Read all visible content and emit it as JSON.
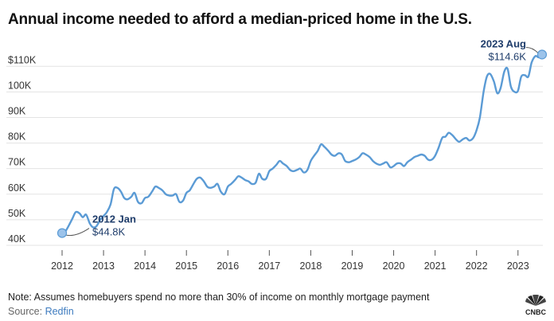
{
  "chart_data": {
    "type": "line",
    "title": "Annual income needed to afford a median-priced home in the U.S.",
    "xlabel": "",
    "ylabel": "",
    "xlim": [
      2012,
      2023.6
    ],
    "ylim": [
      40,
      116
    ],
    "x_ticks": [
      2012,
      2013,
      2014,
      2015,
      2016,
      2017,
      2018,
      2019,
      2020,
      2021,
      2022,
      2023
    ],
    "x_tick_labels": [
      "2012",
      "2013",
      "2014",
      "2015",
      "2016",
      "2017",
      "2018",
      "2019",
      "2020",
      "2021",
      "2022",
      "2023"
    ],
    "y_ticks": [
      40,
      50,
      60,
      70,
      80,
      90,
      100,
      110
    ],
    "y_tick_labels": [
      "40K",
      "50K",
      "60K",
      "70K",
      "80K",
      "90K",
      "100K",
      "$110K"
    ],
    "grid": "horizontal",
    "line_color": "#5b9bd5",
    "series": [
      {
        "name": "Annual income needed ($K)",
        "x": [
          2012.0,
          2012.08,
          2012.17,
          2012.25,
          2012.33,
          2012.42,
          2012.5,
          2012.58,
          2012.67,
          2012.75,
          2012.83,
          2012.92,
          2013.0,
          2013.08,
          2013.17,
          2013.25,
          2013.33,
          2013.42,
          2013.5,
          2013.58,
          2013.67,
          2013.75,
          2013.83,
          2013.92,
          2014.0,
          2014.08,
          2014.17,
          2014.25,
          2014.33,
          2014.42,
          2014.5,
          2014.58,
          2014.67,
          2014.75,
          2014.83,
          2014.92,
          2015.0,
          2015.08,
          2015.17,
          2015.25,
          2015.33,
          2015.42,
          2015.5,
          2015.58,
          2015.67,
          2015.75,
          2015.83,
          2015.92,
          2016.0,
          2016.08,
          2016.17,
          2016.25,
          2016.33,
          2016.42,
          2016.5,
          2016.58,
          2016.67,
          2016.75,
          2016.83,
          2016.92,
          2017.0,
          2017.08,
          2017.17,
          2017.25,
          2017.33,
          2017.42,
          2017.5,
          2017.58,
          2017.67,
          2017.75,
          2017.83,
          2017.92,
          2018.0,
          2018.08,
          2018.17,
          2018.25,
          2018.33,
          2018.42,
          2018.5,
          2018.58,
          2018.67,
          2018.75,
          2018.83,
          2018.92,
          2019.0,
          2019.08,
          2019.17,
          2019.25,
          2019.33,
          2019.42,
          2019.5,
          2019.58,
          2019.67,
          2019.75,
          2019.83,
          2019.92,
          2020.0,
          2020.08,
          2020.17,
          2020.25,
          2020.33,
          2020.42,
          2020.5,
          2020.58,
          2020.67,
          2020.75,
          2020.83,
          2020.92,
          2021.0,
          2021.08,
          2021.17,
          2021.25,
          2021.33,
          2021.42,
          2021.5,
          2021.58,
          2021.67,
          2021.75,
          2021.83,
          2021.92,
          2022.0,
          2022.08,
          2022.17,
          2022.25,
          2022.33,
          2022.42,
          2022.5,
          2022.58,
          2022.67,
          2022.75,
          2022.83,
          2022.92,
          2023.0,
          2023.08,
          2023.17,
          2023.25,
          2023.33,
          2023.42,
          2023.5,
          2023.58
        ],
        "values": [
          44.8,
          45.5,
          48.0,
          50.5,
          53.0,
          52.5,
          51.0,
          52.0,
          48.5,
          47.0,
          47.5,
          50.0,
          51.5,
          53.0,
          56.0,
          62.0,
          62.5,
          61.0,
          58.5,
          58.0,
          59.0,
          60.5,
          57.0,
          56.5,
          58.5,
          59.0,
          61.0,
          63.0,
          62.5,
          61.5,
          60.0,
          59.5,
          59.5,
          60.0,
          57.0,
          57.5,
          60.5,
          61.5,
          64.0,
          66.0,
          66.5,
          65.0,
          63.0,
          62.5,
          63.0,
          64.0,
          61.0,
          60.0,
          63.0,
          64.0,
          65.5,
          67.0,
          66.5,
          65.5,
          65.0,
          64.0,
          64.5,
          68.0,
          66.0,
          66.0,
          69.0,
          70.0,
          71.5,
          73.0,
          72.0,
          71.0,
          69.5,
          69.0,
          69.5,
          70.0,
          68.5,
          69.5,
          73.0,
          75.0,
          77.0,
          79.5,
          78.5,
          77.0,
          75.5,
          75.0,
          76.0,
          75.5,
          73.0,
          72.5,
          73.0,
          73.5,
          74.5,
          76.0,
          75.5,
          74.5,
          73.0,
          72.0,
          71.5,
          72.0,
          72.5,
          70.5,
          71.0,
          72.0,
          72.0,
          71.0,
          72.5,
          73.5,
          74.5,
          75.0,
          75.5,
          75.0,
          73.5,
          73.5,
          75.0,
          78.0,
          82.0,
          82.5,
          84.0,
          83.0,
          81.5,
          80.5,
          81.5,
          82.0,
          81.0,
          82.0,
          85.0,
          90.0,
          100.0,
          106.0,
          107.0,
          104.0,
          99.5,
          101.5,
          108.0,
          109.0,
          102.0,
          100.0,
          100.5,
          106.0,
          106.5,
          106.0,
          111.5,
          114.0,
          113.5,
          114.6
        ]
      }
    ],
    "annotations": [
      {
        "x": 2012.0,
        "y": 44.8,
        "label": "2012 Jan",
        "value_label": "$44.8K",
        "side": "right"
      },
      {
        "x": 2023.58,
        "y": 114.6,
        "label": "2023 Aug",
        "value_label": "$114.6K",
        "side": "left"
      }
    ]
  },
  "footer": {
    "note": "Note: Assumes homebuyers spend no more than 30% of income on monthly mortgage payment",
    "source_prefix": "Source: ",
    "source_name": "Redfin"
  },
  "brand": {
    "logo_label": "CNBC"
  }
}
